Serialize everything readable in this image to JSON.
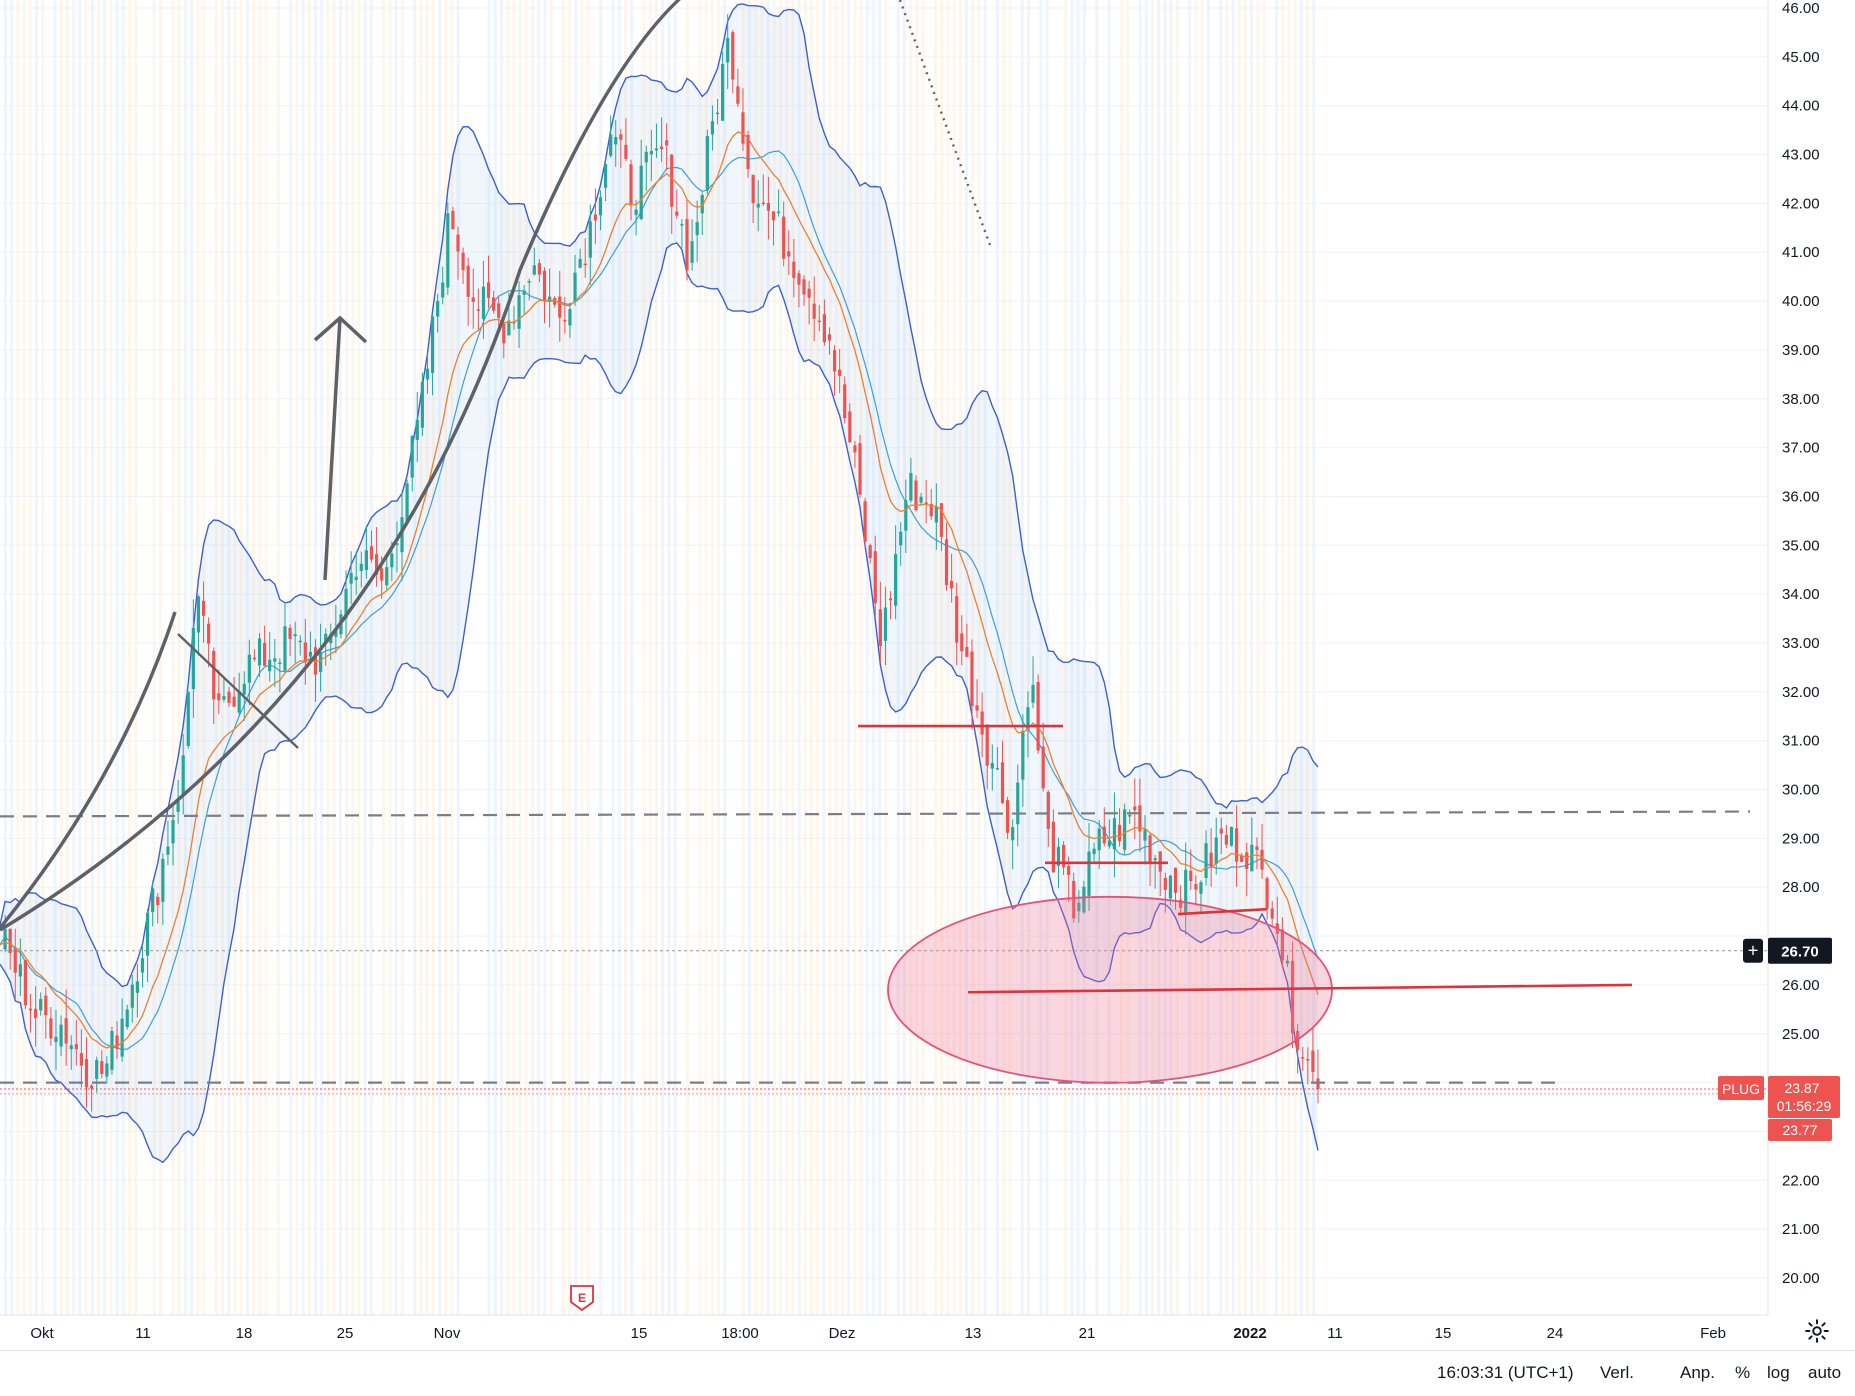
{
  "symbol": "PLUG",
  "colors": {
    "up": "#26a69a",
    "down": "#ef5350",
    "bb_band": "#3a5fd9",
    "bb_basis": "#3aa0e0",
    "ema": "#f07f2e",
    "drawing_gray": "#5f6169",
    "drawing_red": "#e0323c",
    "ellipse_fill": "rgba(240,120,150,0.30)",
    "ellipse_stroke": "#e8507a",
    "current_price_bg": "#ef5350",
    "crosshair_label_bg": "#131722"
  },
  "price_axis": {
    "ticks": [
      "46.00",
      "45.00",
      "44.00",
      "43.00",
      "42.00",
      "41.00",
      "40.00",
      "39.00",
      "38.00",
      "37.00",
      "36.00",
      "35.00",
      "34.00",
      "33.00",
      "32.00",
      "31.00",
      "30.00",
      "29.00",
      "28.00",
      "27.00",
      "26.00",
      "25.00",
      "24.00",
      "23.00",
      "22.00",
      "21.00",
      "20.00"
    ]
  },
  "time_axis": {
    "labels": [
      {
        "text": "Okt",
        "bold": false
      },
      {
        "text": "11",
        "bold": false
      },
      {
        "text": "18",
        "bold": false
      },
      {
        "text": "25",
        "bold": false
      },
      {
        "text": "Nov",
        "bold": false
      },
      {
        "text": "15",
        "bold": false
      },
      {
        "text": "18:00",
        "bold": false
      },
      {
        "text": "Dez",
        "bold": false
      },
      {
        "text": "13",
        "bold": false
      },
      {
        "text": "21",
        "bold": false
      },
      {
        "text": "2022",
        "bold": true
      },
      {
        "text": "11",
        "bold": false
      },
      {
        "text": "15",
        "bold": false
      },
      {
        "text": "24",
        "bold": false
      },
      {
        "text": "Feb",
        "bold": false
      }
    ]
  },
  "price_labels": {
    "crosshair_price": "26.70",
    "symbol_tag": "PLUG",
    "last_price": "23.87",
    "countdown": "01:56:29",
    "prev_price": "23.77"
  },
  "earnings_marker": "E",
  "bottom_bar": {
    "clock": "16:03:31 (UTC+1)",
    "verl": "Verl.",
    "anp": "Anp.",
    "percent": "%",
    "log": "log",
    "auto": "auto"
  },
  "chart_data": {
    "type": "candlestick",
    "symbol": "PLUG",
    "ylim": [
      19.7,
      46.1
    ],
    "y_ticks": [
      20,
      21,
      22,
      23,
      24,
      25,
      26,
      27,
      28,
      29,
      30,
      31,
      32,
      33,
      34,
      35,
      36,
      37,
      38,
      39,
      40,
      41,
      42,
      43,
      44,
      45,
      46
    ],
    "x_labels": [
      "Okt",
      "11",
      "18",
      "25",
      "Nov",
      "15",
      "18:00",
      "Dez",
      "13",
      "21",
      "2022",
      "11",
      "15",
      "24",
      "Feb"
    ],
    "close_path": [
      {
        "t": 0,
        "p": 27.0
      },
      {
        "t": 0.012,
        "p": 26.1
      },
      {
        "t": 0.02,
        "p": 25.4
      },
      {
        "t": 0.035,
        "p": 25.2
      },
      {
        "t": 0.05,
        "p": 24.3
      },
      {
        "t": 0.06,
        "p": 24.2
      },
      {
        "t": 0.075,
        "p": 26.0
      },
      {
        "t": 0.09,
        "p": 28.0
      },
      {
        "t": 0.105,
        "p": 30.5
      },
      {
        "t": 0.112,
        "p": 34.2
      },
      {
        "t": 0.125,
        "p": 31.4
      },
      {
        "t": 0.14,
        "p": 32.5
      },
      {
        "t": 0.165,
        "p": 33.0
      },
      {
        "t": 0.185,
        "p": 32.6
      },
      {
        "t": 0.205,
        "p": 34.8
      },
      {
        "t": 0.22,
        "p": 34.2
      },
      {
        "t": 0.24,
        "p": 37.5
      },
      {
        "t": 0.258,
        "p": 41.8
      },
      {
        "t": 0.272,
        "p": 40.0
      },
      {
        "t": 0.29,
        "p": 39.5
      },
      {
        "t": 0.305,
        "p": 40.8
      },
      {
        "t": 0.32,
        "p": 39.6
      },
      {
        "t": 0.338,
        "p": 41.5
      },
      {
        "t": 0.35,
        "p": 43.5
      },
      {
        "t": 0.362,
        "p": 42.2
      },
      {
        "t": 0.38,
        "p": 43.1
      },
      {
        "t": 0.395,
        "p": 40.8
      },
      {
        "t": 0.41,
        "p": 44.0
      },
      {
        "t": 0.418,
        "p": 45.4
      },
      {
        "t": 0.43,
        "p": 42.5
      },
      {
        "t": 0.445,
        "p": 41.5
      },
      {
        "t": 0.46,
        "p": 40.5
      },
      {
        "t": 0.475,
        "p": 39.3
      },
      {
        "t": 0.49,
        "p": 36.5
      },
      {
        "t": 0.505,
        "p": 33.0
      },
      {
        "t": 0.52,
        "p": 36.2
      },
      {
        "t": 0.535,
        "p": 35.8
      },
      {
        "t": 0.55,
        "p": 33.0
      },
      {
        "t": 0.565,
        "p": 31.0
      },
      {
        "t": 0.58,
        "p": 29.2
      },
      {
        "t": 0.59,
        "p": 32.5
      },
      {
        "t": 0.6,
        "p": 29.0
      },
      {
        "t": 0.615,
        "p": 27.6
      },
      {
        "t": 0.63,
        "p": 28.9
      },
      {
        "t": 0.65,
        "p": 29.5
      },
      {
        "t": 0.665,
        "p": 28.4
      },
      {
        "t": 0.68,
        "p": 27.9
      },
      {
        "t": 0.7,
        "p": 29.0
      },
      {
        "t": 0.715,
        "p": 28.8
      },
      {
        "t": 0.73,
        "p": 27.7
      },
      {
        "t": 0.74,
        "p": 25.5
      },
      {
        "t": 0.75,
        "p": 24.3
      },
      {
        "t": 0.755,
        "p": 23.87
      }
    ],
    "indicators": [
      "Bollinger Bands",
      "EMA"
    ],
    "annotations": {
      "horizontal_dashed_levels": [
        29.55,
        24.0
      ],
      "red_levels": [
        31.3,
        28.5,
        27.5,
        25.9
      ],
      "crosshair_price": 26.7,
      "last_price": 23.87,
      "prev_price": 23.77
    }
  }
}
